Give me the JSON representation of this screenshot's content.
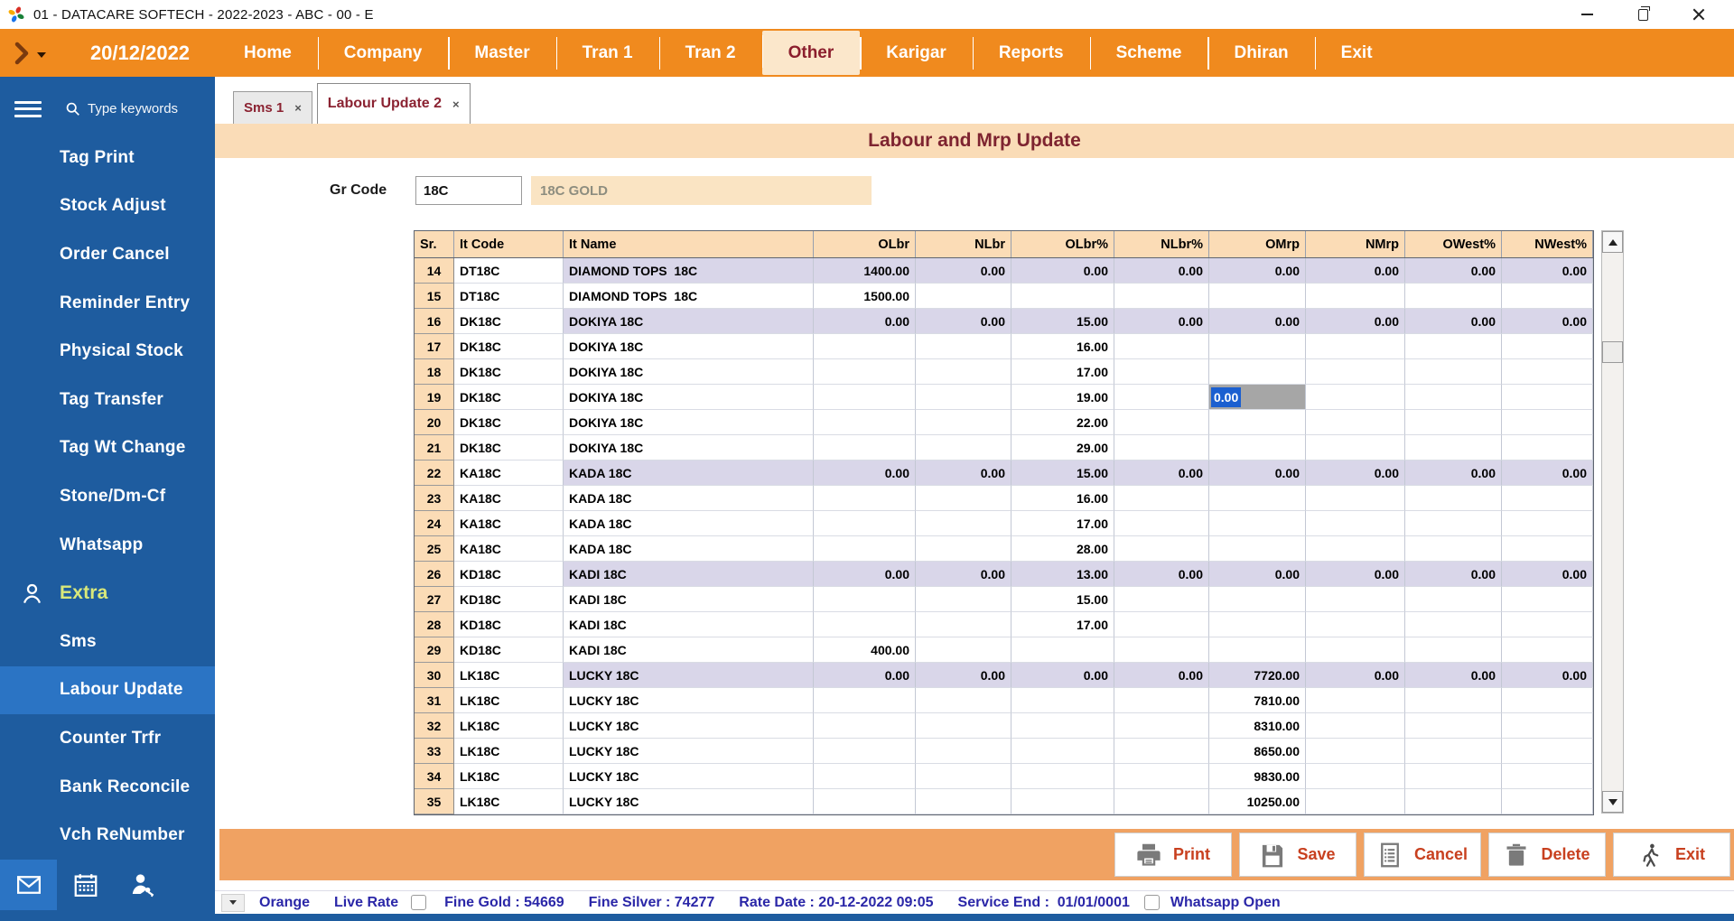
{
  "window": {
    "title": "01 - DATACARE SOFTECH - 2022-2023 - ABC - 00 - E"
  },
  "menubar": {
    "date": "20/12/2022",
    "items": [
      "Home",
      "Company",
      "Master",
      "Tran 1",
      "Tran 2",
      "Other",
      "Karigar",
      "Reports",
      "Scheme",
      "Dhiran",
      "Exit"
    ],
    "active_item": "Other"
  },
  "sidebar": {
    "search_placeholder": "Type keywords",
    "items": [
      {
        "label": "Tag Print"
      },
      {
        "label": "Stock Adjust"
      },
      {
        "label": "Order Cancel"
      },
      {
        "label": "Reminder Entry"
      },
      {
        "label": "Physical Stock"
      },
      {
        "label": "Tag Transfer"
      },
      {
        "label": "Tag Wt Change"
      },
      {
        "label": "Stone/Dm-Cf"
      },
      {
        "label": "Whatsapp"
      },
      {
        "label": "Extra",
        "section": true
      },
      {
        "label": "Sms"
      },
      {
        "label": "Labour Update",
        "active": true
      },
      {
        "label": "Counter Trfr"
      },
      {
        "label": "Bank Reconcile"
      },
      {
        "label": "Vch ReNumber"
      }
    ],
    "bottom_icons": [
      "envelope",
      "calendar",
      "user-key"
    ]
  },
  "tabs": [
    {
      "label": "Sms 1",
      "close": "×",
      "active": false
    },
    {
      "label": "Labour Update 2",
      "close": "×",
      "active": true
    }
  ],
  "page": {
    "title": "Labour and Mrp Update",
    "gr_code": {
      "label": "Gr Code",
      "value": "18C",
      "name": "18C GOLD"
    }
  },
  "table": {
    "columns": [
      {
        "key": "sr",
        "label": "Sr.",
        "align": "left"
      },
      {
        "key": "it_code",
        "label": "It Code",
        "align": "left"
      },
      {
        "key": "it_name",
        "label": "It Name",
        "align": "left"
      },
      {
        "key": "olbr",
        "label": "OLbr",
        "align": "right"
      },
      {
        "key": "nlbr",
        "label": "NLbr",
        "align": "right"
      },
      {
        "key": "olbr_pct",
        "label": "OLbr%",
        "align": "right"
      },
      {
        "key": "nlbr_pct",
        "label": "NLbr%",
        "align": "right"
      },
      {
        "key": "omrp",
        "label": "OMrp",
        "align": "right"
      },
      {
        "key": "nmrp",
        "label": "NMrp",
        "align": "right"
      },
      {
        "key": "owest_pct",
        "label": "OWest%",
        "align": "right"
      },
      {
        "key": "nwest_pct",
        "label": "NWest%",
        "align": "right"
      }
    ],
    "rows": [
      {
        "sr": "14",
        "it_code": "DT18C",
        "it_name": "DIAMOND TOPS  18C",
        "olbr": "1400.00",
        "nlbr": "0.00",
        "olbr_pct": "0.00",
        "nlbr_pct": "0.00",
        "omrp": "0.00",
        "nmrp": "0.00",
        "owest_pct": "0.00",
        "nwest_pct": "0.00",
        "shaded": true
      },
      {
        "sr": "15",
        "it_code": "DT18C",
        "it_name": "DIAMOND TOPS  18C",
        "olbr": "1500.00",
        "nlbr": "",
        "olbr_pct": "",
        "nlbr_pct": "",
        "omrp": "",
        "nmrp": "",
        "owest_pct": "",
        "nwest_pct": "",
        "shaded": false
      },
      {
        "sr": "16",
        "it_code": "DK18C",
        "it_name": "DOKIYA 18C",
        "olbr": "0.00",
        "nlbr": "0.00",
        "olbr_pct": "15.00",
        "nlbr_pct": "0.00",
        "omrp": "0.00",
        "nmrp": "0.00",
        "owest_pct": "0.00",
        "nwest_pct": "0.00",
        "shaded": true
      },
      {
        "sr": "17",
        "it_code": "DK18C",
        "it_name": "DOKIYA 18C",
        "olbr": "",
        "nlbr": "",
        "olbr_pct": "16.00",
        "nlbr_pct": "",
        "omrp": "",
        "nmrp": "",
        "owest_pct": "",
        "nwest_pct": "",
        "shaded": false
      },
      {
        "sr": "18",
        "it_code": "DK18C",
        "it_name": "DOKIYA 18C",
        "olbr": "",
        "nlbr": "",
        "olbr_pct": "17.00",
        "nlbr_pct": "",
        "omrp": "",
        "nmrp": "",
        "owest_pct": "",
        "nwest_pct": "",
        "shaded": false
      },
      {
        "sr": "19",
        "it_code": "DK18C",
        "it_name": "DOKIYA 18C",
        "olbr": "",
        "nlbr": "",
        "olbr_pct": "19.00",
        "nlbr_pct": "",
        "omrp": "",
        "nmrp": "",
        "owest_pct": "",
        "nwest_pct": "",
        "shaded": false,
        "editing": {
          "column": "omrp",
          "value": "0.00"
        }
      },
      {
        "sr": "20",
        "it_code": "DK18C",
        "it_name": "DOKIYA 18C",
        "olbr": "",
        "nlbr": "",
        "olbr_pct": "22.00",
        "nlbr_pct": "",
        "omrp": "",
        "nmrp": "",
        "owest_pct": "",
        "nwest_pct": "",
        "shaded": false
      },
      {
        "sr": "21",
        "it_code": "DK18C",
        "it_name": "DOKIYA 18C",
        "olbr": "",
        "nlbr": "",
        "olbr_pct": "29.00",
        "nlbr_pct": "",
        "omrp": "",
        "nmrp": "",
        "owest_pct": "",
        "nwest_pct": "",
        "shaded": false
      },
      {
        "sr": "22",
        "it_code": "KA18C",
        "it_name": "KADA 18C",
        "olbr": "0.00",
        "nlbr": "0.00",
        "olbr_pct": "15.00",
        "nlbr_pct": "0.00",
        "omrp": "0.00",
        "nmrp": "0.00",
        "owest_pct": "0.00",
        "nwest_pct": "0.00",
        "shaded": true
      },
      {
        "sr": "23",
        "it_code": "KA18C",
        "it_name": "KADA 18C",
        "olbr": "",
        "nlbr": "",
        "olbr_pct": "16.00",
        "nlbr_pct": "",
        "omrp": "",
        "nmrp": "",
        "owest_pct": "",
        "nwest_pct": "",
        "shaded": false
      },
      {
        "sr": "24",
        "it_code": "KA18C",
        "it_name": "KADA 18C",
        "olbr": "",
        "nlbr": "",
        "olbr_pct": "17.00",
        "nlbr_pct": "",
        "omrp": "",
        "nmrp": "",
        "owest_pct": "",
        "nwest_pct": "",
        "shaded": false
      },
      {
        "sr": "25",
        "it_code": "KA18C",
        "it_name": "KADA 18C",
        "olbr": "",
        "nlbr": "",
        "olbr_pct": "28.00",
        "nlbr_pct": "",
        "omrp": "",
        "nmrp": "",
        "owest_pct": "",
        "nwest_pct": "",
        "shaded": false
      },
      {
        "sr": "26",
        "it_code": "KD18C",
        "it_name": "KADI 18C",
        "olbr": "0.00",
        "nlbr": "0.00",
        "olbr_pct": "13.00",
        "nlbr_pct": "0.00",
        "omrp": "0.00",
        "nmrp": "0.00",
        "owest_pct": "0.00",
        "nwest_pct": "0.00",
        "shaded": true
      },
      {
        "sr": "27",
        "it_code": "KD18C",
        "it_name": "KADI 18C",
        "olbr": "",
        "nlbr": "",
        "olbr_pct": "15.00",
        "nlbr_pct": "",
        "omrp": "",
        "nmrp": "",
        "owest_pct": "",
        "nwest_pct": "",
        "shaded": false
      },
      {
        "sr": "28",
        "it_code": "KD18C",
        "it_name": "KADI 18C",
        "olbr": "",
        "nlbr": "",
        "olbr_pct": "17.00",
        "nlbr_pct": "",
        "omrp": "",
        "nmrp": "",
        "owest_pct": "",
        "nwest_pct": "",
        "shaded": false
      },
      {
        "sr": "29",
        "it_code": "KD18C",
        "it_name": "KADI 18C",
        "olbr": "400.00",
        "nlbr": "",
        "olbr_pct": "",
        "nlbr_pct": "",
        "omrp": "",
        "nmrp": "",
        "owest_pct": "",
        "nwest_pct": "",
        "shaded": false
      },
      {
        "sr": "30",
        "it_code": "LK18C",
        "it_name": "LUCKY 18C",
        "olbr": "0.00",
        "nlbr": "0.00",
        "olbr_pct": "0.00",
        "nlbr_pct": "0.00",
        "omrp": "7720.00",
        "nmrp": "0.00",
        "owest_pct": "0.00",
        "nwest_pct": "0.00",
        "shaded": true
      },
      {
        "sr": "31",
        "it_code": "LK18C",
        "it_name": "LUCKY 18C",
        "olbr": "",
        "nlbr": "",
        "olbr_pct": "",
        "nlbr_pct": "",
        "omrp": "7810.00",
        "nmrp": "",
        "owest_pct": "",
        "nwest_pct": "",
        "shaded": false
      },
      {
        "sr": "32",
        "it_code": "LK18C",
        "it_name": "LUCKY 18C",
        "olbr": "",
        "nlbr": "",
        "olbr_pct": "",
        "nlbr_pct": "",
        "omrp": "8310.00",
        "nmrp": "",
        "owest_pct": "",
        "nwest_pct": "",
        "shaded": false
      },
      {
        "sr": "33",
        "it_code": "LK18C",
        "it_name": "LUCKY 18C",
        "olbr": "",
        "nlbr": "",
        "olbr_pct": "",
        "nlbr_pct": "",
        "omrp": "8650.00",
        "nmrp": "",
        "owest_pct": "",
        "nwest_pct": "",
        "shaded": false
      },
      {
        "sr": "34",
        "it_code": "LK18C",
        "it_name": "LUCKY 18C",
        "olbr": "",
        "nlbr": "",
        "olbr_pct": "",
        "nlbr_pct": "",
        "omrp": "9830.00",
        "nmrp": "",
        "owest_pct": "",
        "nwest_pct": "",
        "shaded": false
      },
      {
        "sr": "35",
        "it_code": "LK18C",
        "it_name": "LUCKY 18C",
        "olbr": "",
        "nlbr": "",
        "olbr_pct": "",
        "nlbr_pct": "",
        "omrp": "10250.00",
        "nmrp": "",
        "owest_pct": "",
        "nwest_pct": "",
        "shaded": false
      }
    ]
  },
  "toolbar": {
    "buttons": [
      {
        "label": "Print",
        "icon": "printer-icon"
      },
      {
        "label": "Save",
        "icon": "save-icon"
      },
      {
        "label": "Cancel",
        "icon": "cancel-icon"
      },
      {
        "label": "Delete",
        "icon": "delete-icon"
      },
      {
        "label": "Exit",
        "icon": "exit-icon"
      }
    ]
  },
  "statusbar": {
    "company": "Orange",
    "live_rate_label": "Live Rate",
    "fine_gold": "Fine Gold : 54669",
    "fine_silver": "Fine Silver : 74277",
    "rate_date": "Rate Date : 20-12-2022 09:05",
    "service_end": "Service End :  01/01/0001",
    "whatsapp": "Whatsapp Open"
  },
  "colors": {
    "menu_orange": "#F08A1E",
    "footer_orange": "#F0A262",
    "sidebar_blue": "#1E5C9F",
    "active_blue": "#2B74C4",
    "peach_header": "#FBDCB6",
    "lavender_row": "#D9D6E9",
    "maroon_text": "#8B2332",
    "status_navy": "#2B27A8",
    "edit_selection_blue": "#1B5FD0"
  }
}
